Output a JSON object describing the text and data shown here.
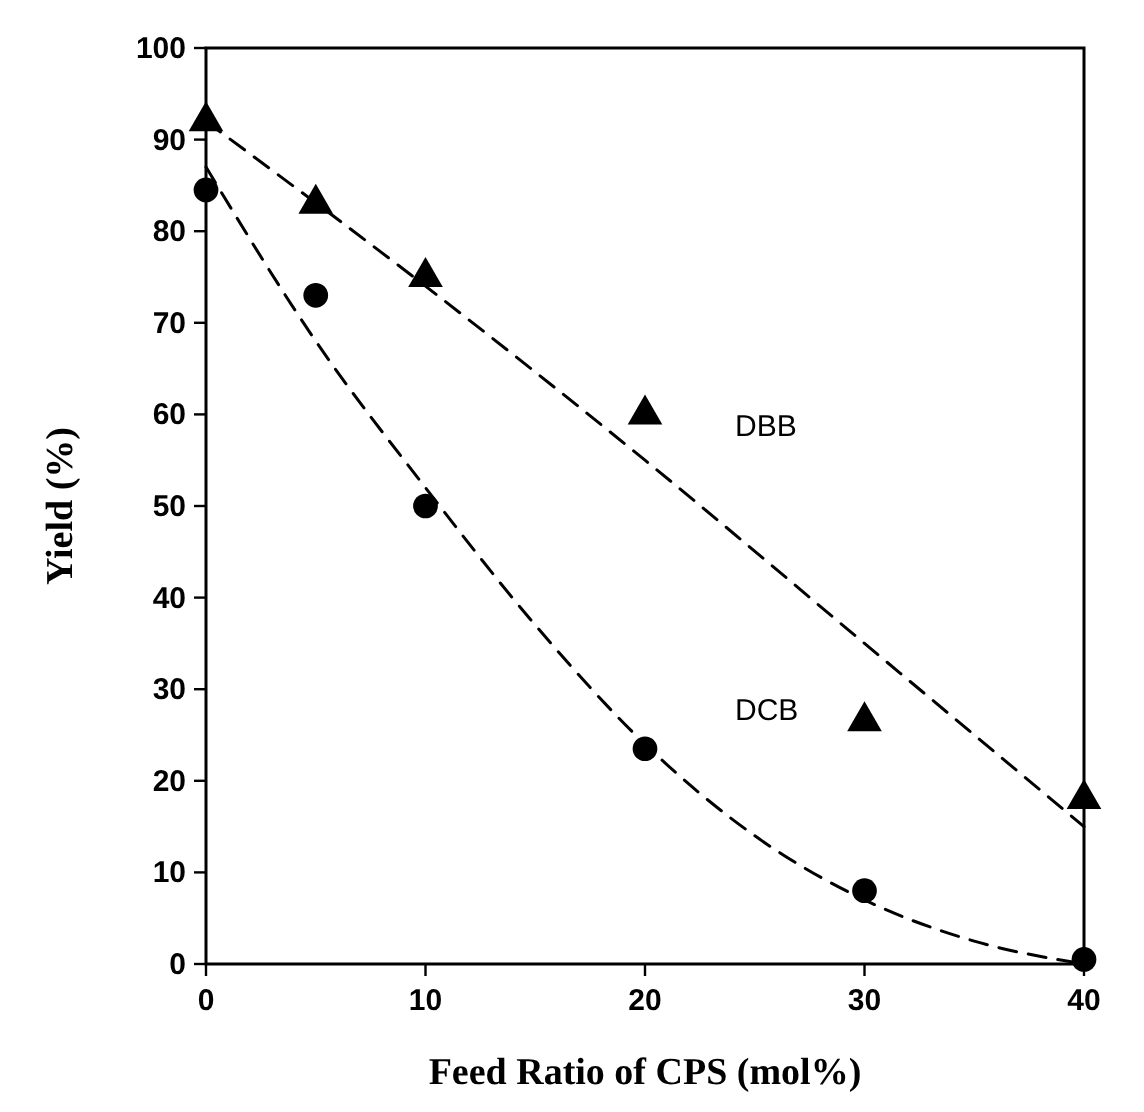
{
  "chart_data": {
    "type": "scatter",
    "xlabel": "Feed Ratio of CPS (mol%)",
    "ylabel": "Yield (%)",
    "xlim": [
      0,
      40
    ],
    "xticks": [
      0,
      10,
      20,
      30,
      40
    ],
    "ylim": [
      0,
      100
    ],
    "yticks": [
      0,
      10,
      20,
      30,
      40,
      50,
      60,
      70,
      80,
      90,
      100
    ],
    "grid": false,
    "series": [
      {
        "type": "line",
        "name": "DBB",
        "color": "#000000",
        "line_style": "dashed",
        "marker": "none",
        "x": [
          0,
          10,
          20,
          30,
          40
        ],
        "values": [
          92,
          74,
          55,
          35,
          15
        ]
      },
      {
        "type": "line",
        "name": "DCB",
        "color": "#000000",
        "line_style": "dashed",
        "marker": "none",
        "x": [
          0,
          5,
          10,
          15,
          20,
          25,
          30,
          35,
          40
        ],
        "values": [
          87,
          68,
          52,
          37,
          24,
          14,
          7,
          2.5,
          0
        ]
      },
      {
        "color": "#000000",
        "marker": "triangle",
        "x": [
          0,
          5,
          10,
          20,
          30,
          40
        ],
        "values": [
          92,
          83,
          75,
          60,
          26.5,
          18
        ]
      },
      {
        "color": "#000000",
        "marker": "circle",
        "x": [
          0,
          5,
          10,
          20,
          30,
          40
        ],
        "values": [
          84.5,
          73,
          50,
          23.5,
          8,
          0.5
        ]
      }
    ]
  }
}
